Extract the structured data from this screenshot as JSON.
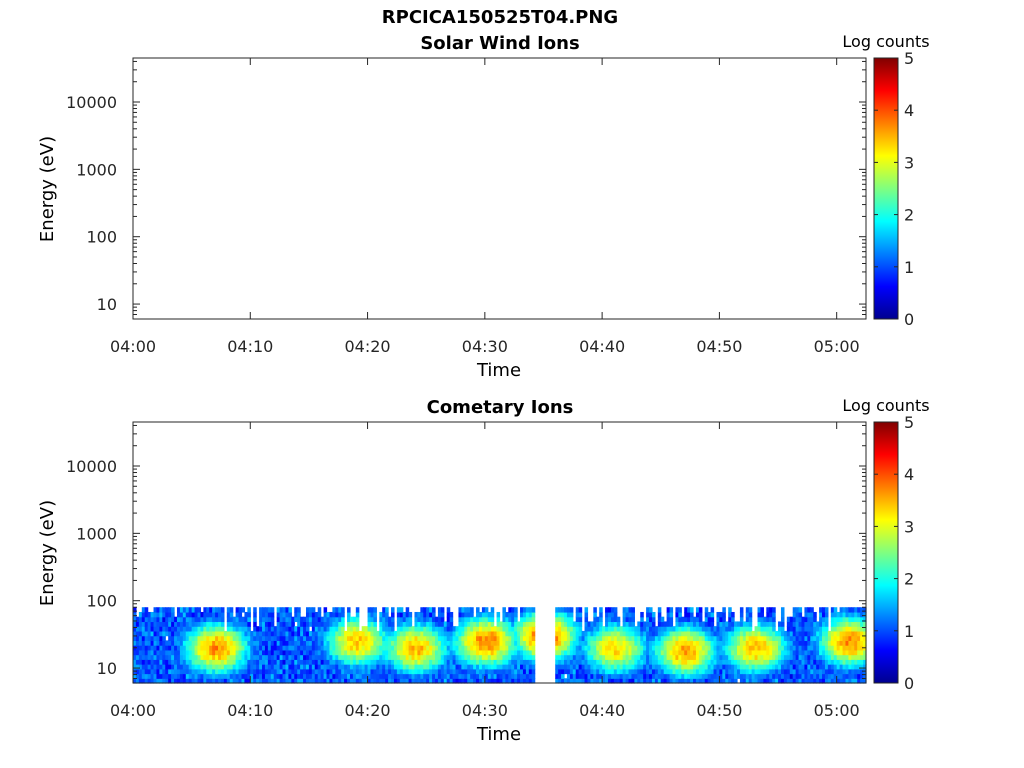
{
  "figure": {
    "title": "RPCICA150525T04.PNG"
  },
  "colorbar": {
    "label": "Log counts",
    "ticks": [
      "0",
      "1",
      "2",
      "3",
      "4",
      "5"
    ],
    "range": [
      0,
      5
    ],
    "colormap": "jet"
  },
  "chart_data": [
    {
      "type": "heatmap",
      "title": "Solar Wind Ions",
      "xlabel": "Time",
      "ylabel": "Energy (eV)",
      "xticks": [
        "04:00",
        "04:10",
        "04:20",
        "04:30",
        "04:40",
        "04:50",
        "05:00"
      ],
      "yticks": [
        "10",
        "100",
        "1000",
        "10000"
      ],
      "yscale": "log",
      "ylim": [
        6,
        45000
      ],
      "xlim_minutes_after_0400": [
        0,
        62.5
      ],
      "colorbar_label": "Log counts",
      "clim": [
        0,
        5
      ],
      "data_present": false,
      "note_energy_band_eV": [],
      "peaks": []
    },
    {
      "type": "heatmap",
      "title": "Cometary Ions",
      "xlabel": "Time",
      "ylabel": "Energy (eV)",
      "xticks": [
        "04:00",
        "04:10",
        "04:20",
        "04:30",
        "04:40",
        "04:50",
        "05:00"
      ],
      "yticks": [
        "10",
        "100",
        "1000",
        "10000"
      ],
      "yscale": "log",
      "ylim": [
        6,
        45000
      ],
      "xlim_minutes_after_0400": [
        0,
        62.5
      ],
      "colorbar_label": "Log counts",
      "clim": [
        0,
        5
      ],
      "data_present": true,
      "energy_band_eV": [
        6,
        80
      ],
      "peaks": [
        {
          "time": "04:07",
          "energy_eV": 20,
          "log_counts": 3.7
        },
        {
          "time": "04:19",
          "energy_eV": 25,
          "log_counts": 3.4
        },
        {
          "time": "04:24",
          "energy_eV": 20,
          "log_counts": 3.5
        },
        {
          "time": "04:30",
          "energy_eV": 25,
          "log_counts": 3.8
        },
        {
          "time": "04:35",
          "energy_eV": 30,
          "log_counts": 4.0
        },
        {
          "time": "04:41",
          "energy_eV": 20,
          "log_counts": 3.3
        },
        {
          "time": "04:47",
          "energy_eV": 18,
          "log_counts": 3.6
        },
        {
          "time": "04:53",
          "energy_eV": 20,
          "log_counts": 3.5
        },
        {
          "time": "05:01",
          "energy_eV": 25,
          "log_counts": 3.7
        }
      ]
    }
  ]
}
